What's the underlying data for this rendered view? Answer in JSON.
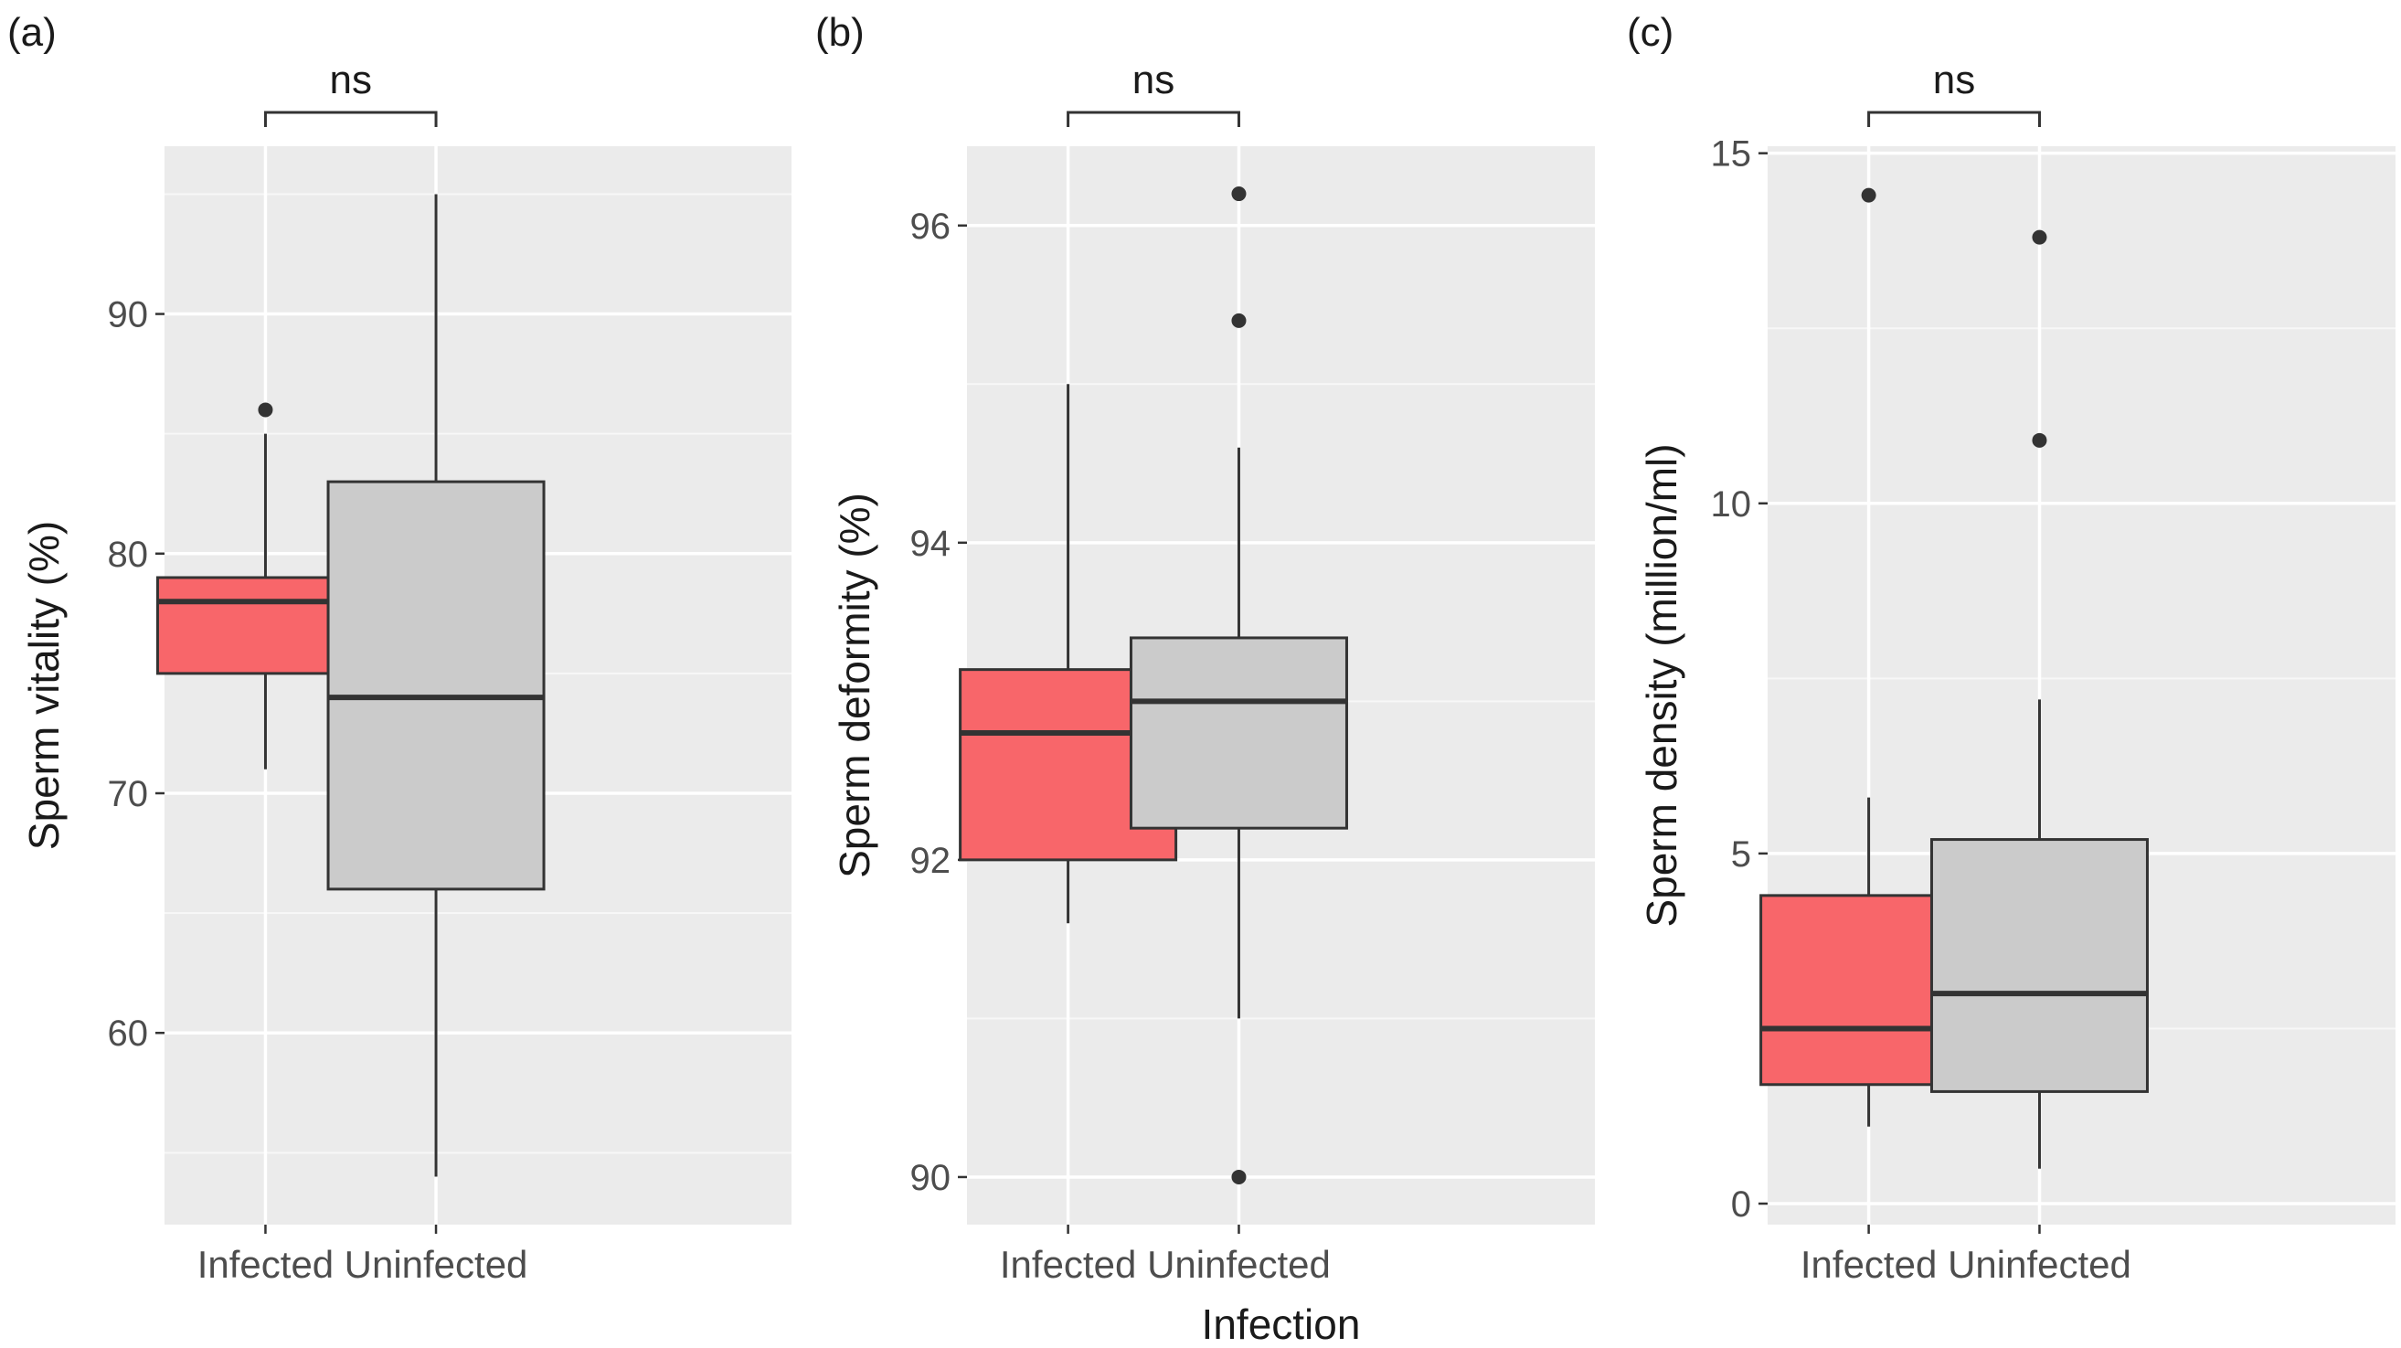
{
  "chart_data": [
    {
      "type": "boxplot",
      "panel_label": "(a)",
      "ylabel": "Sperm vitality (%)",
      "xlabel": "",
      "ylim": [
        52,
        97
      ],
      "yticks": [
        60,
        70,
        80,
        90
      ],
      "categories": [
        "Infected",
        "Uninfected"
      ],
      "significance": "ns",
      "boxes": [
        {
          "category": "Infected",
          "q1": 75,
          "median": 78,
          "q3": 79,
          "whisker_low": 71,
          "whisker_high": 85,
          "outliers": [
            86
          ],
          "fill": "#f8666a"
        },
        {
          "category": "Uninfected",
          "q1": 66,
          "median": 74,
          "q3": 83,
          "whisker_low": 54,
          "whisker_high": 95,
          "outliers": [],
          "fill": "#cbcbcb"
        }
      ]
    },
    {
      "type": "boxplot",
      "panel_label": "(b)",
      "ylabel": "Sperm deformity (%)",
      "xlabel": "Infection",
      "ylim": [
        89.7,
        96.5
      ],
      "yticks": [
        90,
        92,
        94,
        96
      ],
      "categories": [
        "Infected",
        "Uninfected"
      ],
      "significance": "ns",
      "boxes": [
        {
          "category": "Infected",
          "q1": 92.0,
          "median": 92.8,
          "q3": 93.2,
          "whisker_low": 91.6,
          "whisker_high": 95.0,
          "outliers": [],
          "fill": "#f8666a"
        },
        {
          "category": "Uninfected",
          "q1": 92.2,
          "median": 93.0,
          "q3": 93.4,
          "whisker_low": 91.0,
          "whisker_high": 94.6,
          "outliers": [
            96.2,
            95.4,
            90.0
          ],
          "fill": "#cbcbcb"
        }
      ]
    },
    {
      "type": "boxplot",
      "panel_label": "(c)",
      "ylabel": "Sperm density (million/ml)",
      "xlabel": "",
      "ylim": [
        -0.3,
        15.1
      ],
      "yticks": [
        0,
        5,
        10,
        15
      ],
      "categories": [
        "Infected",
        "Uninfected"
      ],
      "significance": "ns",
      "boxes": [
        {
          "category": "Infected",
          "q1": 1.7,
          "median": 2.5,
          "q3": 4.4,
          "whisker_low": 1.1,
          "whisker_high": 5.8,
          "outliers": [
            14.4
          ],
          "fill": "#f8666a"
        },
        {
          "category": "Uninfected",
          "q1": 1.6,
          "median": 3.0,
          "q3": 5.2,
          "whisker_low": 0.5,
          "whisker_high": 7.2,
          "outliers": [
            13.8,
            10.9
          ],
          "fill": "#cbcbcb"
        }
      ]
    }
  ]
}
